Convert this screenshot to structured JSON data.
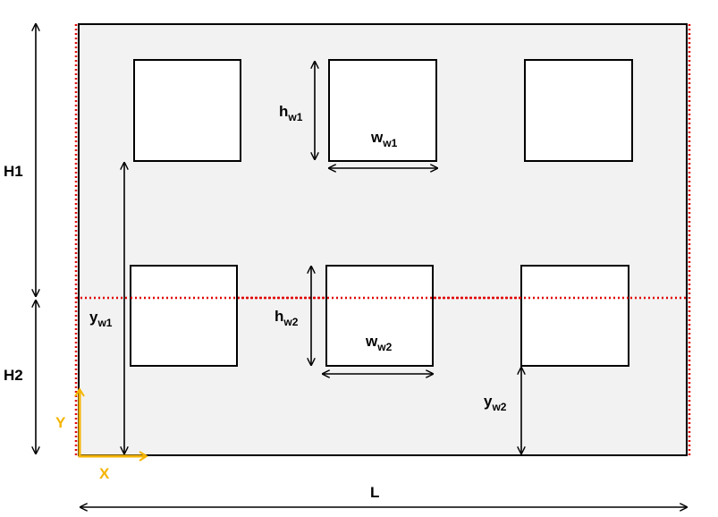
{
  "colors": {
    "wall_fill": "#f2f2f2",
    "outline": "#000000",
    "dotted_line": "#e00000",
    "axes": "#f5b400",
    "window_fill": "#ffffff"
  },
  "labels": {
    "L": "L",
    "H1": "H1",
    "H2": "H2",
    "hw1": {
      "main": "h",
      "sub": "w1"
    },
    "ww1": {
      "main": "w",
      "sub": "w1"
    },
    "hw2": {
      "main": "h",
      "sub": "w2"
    },
    "ww2": {
      "main": "w",
      "sub": "w2"
    },
    "yw1": {
      "main": "y",
      "sub": "w1"
    },
    "yw2": {
      "main": "y",
      "sub": "w2"
    },
    "axis_x": "X",
    "axis_y": "Y"
  },
  "window_rows": [
    {
      "row": "upper",
      "count": 3
    },
    {
      "row": "lower",
      "count": 3
    }
  ]
}
